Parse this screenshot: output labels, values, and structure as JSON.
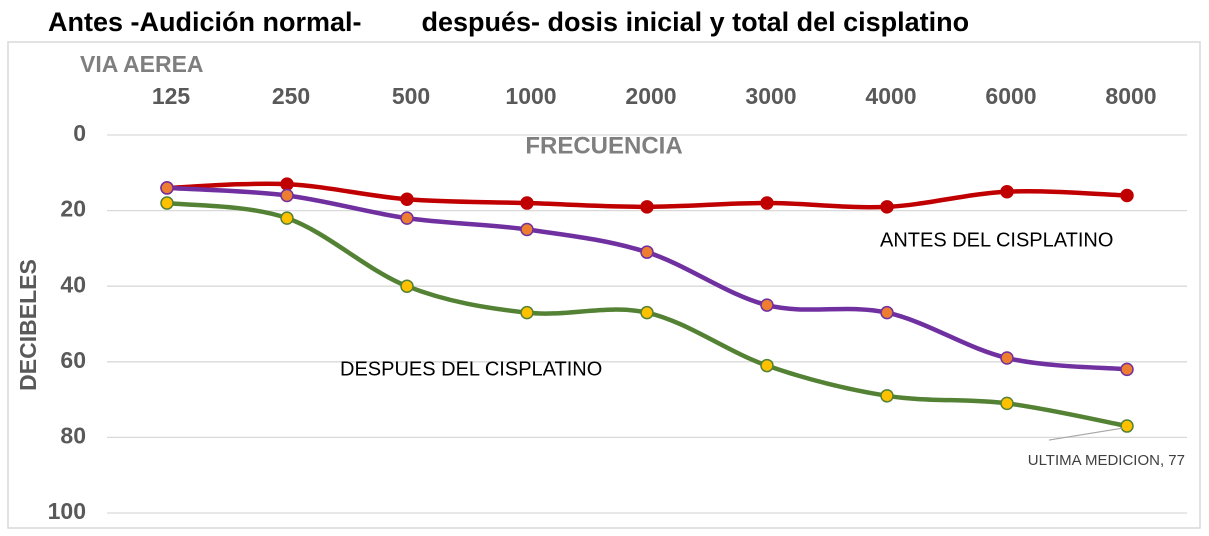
{
  "chart_data": {
    "type": "line",
    "title": "Antes -Audición normal-        después- dosis inicial y total del cisplatino",
    "x_axis_title": "VIA AEREA",
    "x_label": "FRECUENCIA",
    "y_label": "DECIBELES",
    "categories": [
      "125",
      "250",
      "500",
      "1000",
      "2000",
      "3000",
      "4000",
      "6000",
      "8000"
    ],
    "series": [
      {
        "name": "ANTES DEL CISPLATINO",
        "color": "#c00000",
        "marker_color": "#c00000",
        "values": [
          14,
          13,
          17,
          18,
          19,
          18,
          19,
          15,
          16
        ]
      },
      {
        "color": "#7030a0",
        "marker_color": "#ed7d31",
        "values": [
          14,
          16,
          22,
          25,
          31,
          45,
          47,
          59,
          62
        ]
      },
      {
        "name": "DESPUES DEL CISPLATINO",
        "color": "#548235",
        "marker_color": "#ffc000",
        "values": [
          18,
          22,
          40,
          47,
          47,
          61,
          69,
          71,
          77
        ],
        "value_labels": [
          null,
          null,
          null,
          null,
          null,
          null,
          null,
          null,
          "ULTIMA MEDICION, 77"
        ]
      }
    ],
    "ylim": [
      0,
      100
    ],
    "yticks": [
      0,
      20,
      40,
      60,
      80,
      100
    ],
    "y_inverted": true,
    "grid": true
  }
}
